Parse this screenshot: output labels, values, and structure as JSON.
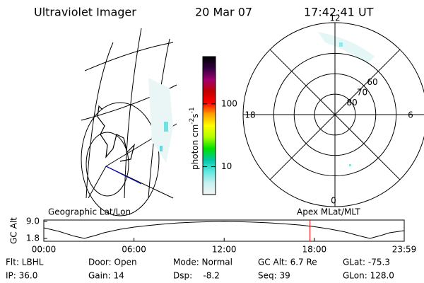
{
  "header": {
    "instrument": "Ultraviolet Imager",
    "date": "20 Mar 07",
    "time": "17:42:41 UT"
  },
  "colorbar": {
    "label": "photon cm",
    "exp1": "-2",
    "unit2": "s",
    "exp2": "-1",
    "scale": "log",
    "range": [
      3.6,
      565
    ],
    "ticks": [
      10,
      100
    ],
    "colors": [
      "#f4f4f4",
      "#c8f0f0",
      "#60e8e0",
      "#00c8a8",
      "#00e000",
      "#b0ff00",
      "#ffff00",
      "#ffa000",
      "#ff0000",
      "#c00000",
      "#a00070",
      "#300040",
      "#000000"
    ]
  },
  "polar": {
    "mlt_labels": {
      "top": "12",
      "right": "6",
      "bottom": "0",
      "left": "18"
    },
    "lat_range": [
      90,
      45
    ],
    "lat_ticks": [
      80,
      70,
      60
    ]
  },
  "altitude": {
    "left_label": "Geographic Lat/Lon",
    "right_label": "Apex MLat/MLT",
    "y_label": "GC Alt",
    "ylim": [
      1.8,
      9.0
    ],
    "yticks": [
      {
        "value": 9,
        "label": "9.0"
      },
      1.8
    ],
    "xlim": [
      0,
      23.98
    ],
    "xticks": [
      {
        "value": 0,
        "label": "00:00"
      },
      {
        "value": 6,
        "label": "06:00"
      },
      {
        "value": 12,
        "label": "12:00"
      },
      {
        "value": 18,
        "label": "18:00"
      },
      {
        "value": 23.98,
        "label": "23:59"
      }
    ],
    "x": [
      0,
      1,
      2,
      2.7,
      3.5,
      4,
      5,
      6,
      7,
      8,
      9,
      10,
      11,
      12,
      13,
      14,
      15,
      16,
      17,
      18,
      19,
      20,
      21,
      21.7,
      22.5,
      23,
      23.98
    ],
    "y": [
      6.3,
      4.8,
      2.8,
      1.8,
      3.2,
      4.2,
      5.6,
      6.6,
      7.3,
      7.9,
      8.4,
      8.7,
      8.9,
      9.0,
      8.9,
      8.7,
      8.4,
      8.0,
      7.5,
      6.8,
      5.8,
      4.6,
      2.9,
      1.8,
      3.2,
      4.2,
      5.1
    ],
    "current_time": 17.71,
    "current_color": "#ff0000",
    "line_color": "#000000"
  },
  "info": [
    [
      "Flt: LBHL",
      "Door: Open",
      "Mode: Normal",
      "GC Alt: 6.7 Re",
      "GLat: -75.3"
    ],
    [
      "IP: 36.0",
      "Gain: 14",
      "Dsp:    -8.2",
      "Seq: 39",
      "GLon: 128.0"
    ]
  ]
}
